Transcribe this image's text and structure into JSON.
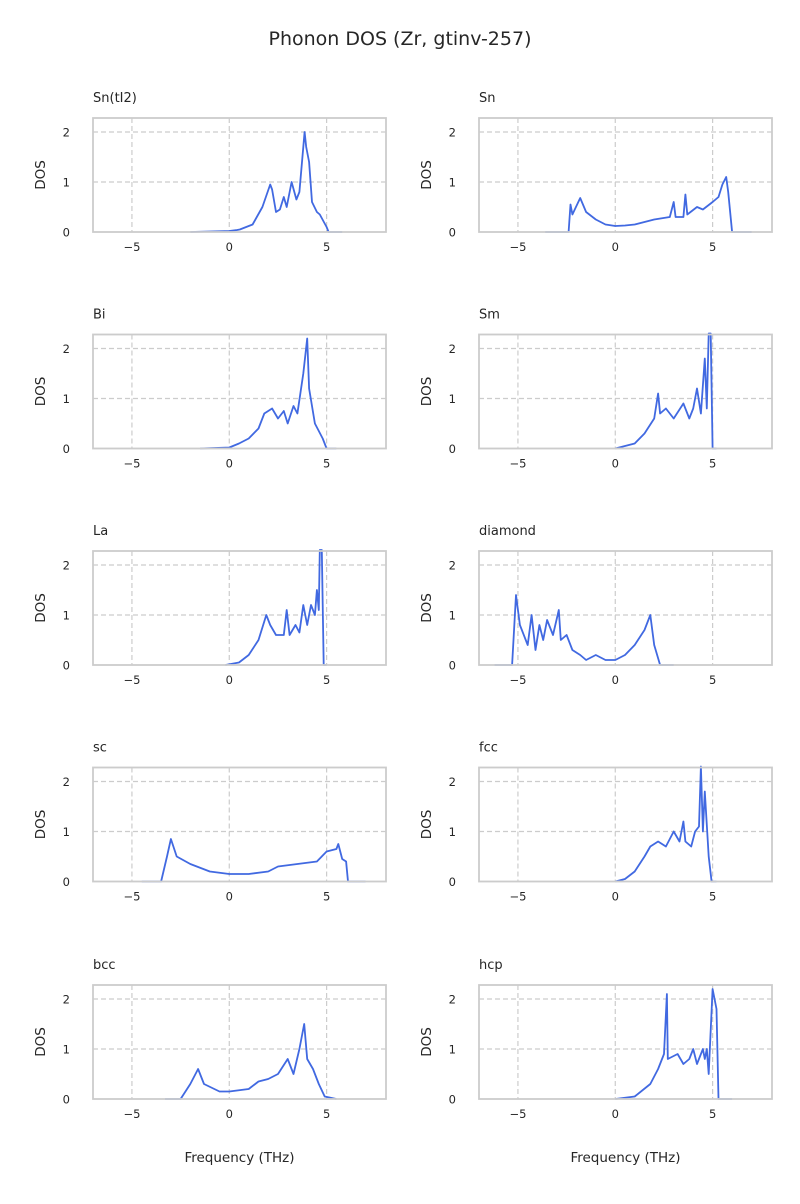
{
  "chart_data": {
    "type": "line",
    "title": "Phonon DOS (Zr, gtinv-257)",
    "xlabel": "Frequency (THz)",
    "ylabel": "DOS",
    "xlim": [
      -7,
      8.05
    ],
    "ylim": [
      0,
      2.28
    ],
    "xticks": [
      -5,
      0,
      5
    ],
    "yticks": [
      0,
      1,
      2
    ],
    "grid": true,
    "line_color": "#4169e1",
    "panels": [
      {
        "title": "Sn(tI2)",
        "x": [
          -2,
          0,
          0.4,
          0.54,
          1.2,
          1.7,
          2.1,
          2.2,
          2.4,
          2.6,
          2.8,
          2.95,
          3.2,
          3.45,
          3.6,
          3.87,
          3.95,
          4.1,
          4.25,
          4.5,
          4.65,
          5.0,
          5.1,
          5.8
        ],
        "y": [
          0,
          0.02,
          0.04,
          0.05,
          0.15,
          0.5,
          0.95,
          0.85,
          0.4,
          0.45,
          0.7,
          0.5,
          1.0,
          0.65,
          0.8,
          2.0,
          1.7,
          1.4,
          0.6,
          0.4,
          0.35,
          0.1,
          0,
          0
        ]
      },
      {
        "title": "Sn",
        "x": [
          -3.6,
          -2.4,
          -2.3,
          -2.2,
          -1.8,
          -1.5,
          -1,
          -0.5,
          0,
          0.5,
          1,
          2,
          2.8,
          3,
          3.1,
          3.5,
          3.6,
          3.7,
          4.2,
          4.5,
          5,
          5.3,
          5.5,
          5.7,
          5.8,
          6,
          7
        ],
        "y": [
          0,
          0,
          0.55,
          0.35,
          0.68,
          0.4,
          0.25,
          0.15,
          0.12,
          0.13,
          0.15,
          0.25,
          0.3,
          0.6,
          0.3,
          0.3,
          0.75,
          0.35,
          0.5,
          0.45,
          0.6,
          0.7,
          0.95,
          1.1,
          0.8,
          0,
          0
        ]
      },
      {
        "title": "Bi",
        "x": [
          -1.5,
          0,
          0.5,
          1,
          1.5,
          1.8,
          2.2,
          2.5,
          2.8,
          3,
          3.3,
          3.5,
          3.8,
          4,
          4.1,
          4.4,
          4.8,
          5,
          5.5
        ],
        "y": [
          0,
          0.02,
          0.1,
          0.2,
          0.4,
          0.7,
          0.8,
          0.6,
          0.75,
          0.5,
          0.85,
          0.7,
          1.5,
          2.2,
          1.2,
          0.5,
          0.2,
          0,
          0
        ]
      },
      {
        "title": "Sm",
        "x": [
          0,
          1,
          1.5,
          2,
          2.2,
          2.3,
          2.6,
          3,
          3.5,
          3.8,
          4,
          4.2,
          4.4,
          4.6,
          4.7,
          4.8,
          4.9,
          5.0,
          5.2
        ],
        "y": [
          0,
          0.1,
          0.3,
          0.6,
          1.1,
          0.7,
          0.8,
          0.6,
          0.9,
          0.6,
          0.8,
          1.2,
          0.7,
          1.8,
          0.8,
          2.3,
          2.3,
          0,
          0
        ]
      },
      {
        "title": "La",
        "x": [
          -0.2,
          0.5,
          1,
          1.5,
          1.9,
          2.1,
          2.4,
          2.8,
          2.95,
          3.1,
          3.4,
          3.6,
          3.8,
          4,
          4.2,
          4.4,
          4.5,
          4.6,
          4.65,
          4.75,
          4.85,
          5
        ],
        "y": [
          0,
          0.05,
          0.2,
          0.5,
          1.0,
          0.8,
          0.6,
          0.6,
          1.1,
          0.6,
          0.8,
          0.65,
          1.2,
          0.8,
          1.2,
          1.0,
          1.5,
          1.1,
          2.3,
          2.3,
          0,
          0
        ]
      },
      {
        "title": "diamond",
        "x": [
          -6.2,
          -5.3,
          -5.1,
          -4.9,
          -4.5,
          -4.3,
          -4.1,
          -3.9,
          -3.7,
          -3.5,
          -3.2,
          -2.9,
          -2.8,
          -2.5,
          -2.2,
          -1.8,
          -1.5,
          -1,
          -0.5,
          0,
          0.5,
          1,
          1.5,
          1.8,
          2,
          2.3,
          3
        ],
        "y": [
          0,
          0,
          1.4,
          0.8,
          0.4,
          1.0,
          0.3,
          0.8,
          0.5,
          0.9,
          0.6,
          1.1,
          0.5,
          0.6,
          0.3,
          0.2,
          0.1,
          0.2,
          0.1,
          0.1,
          0.2,
          0.4,
          0.7,
          1.0,
          0.4,
          0,
          0
        ]
      },
      {
        "title": "sc",
        "x": [
          -4.5,
          -3.5,
          -3.2,
          -3,
          -2.7,
          -2,
          -1,
          0,
          1,
          2,
          2.5,
          3.5,
          4.5,
          5,
          5.5,
          5.6,
          5.8,
          6,
          6.1,
          7
        ],
        "y": [
          0,
          0,
          0.5,
          0.85,
          0.5,
          0.35,
          0.2,
          0.15,
          0.15,
          0.2,
          0.3,
          0.35,
          0.4,
          0.6,
          0.65,
          0.75,
          0.45,
          0.4,
          0,
          0
        ]
      },
      {
        "title": "fcc",
        "x": [
          0,
          0.5,
          1,
          1.5,
          1.8,
          2.2,
          2.6,
          3,
          3.3,
          3.5,
          3.6,
          3.9,
          4.1,
          4.3,
          4.4,
          4.5,
          4.6,
          4.8,
          4.95,
          5.2
        ],
        "y": [
          0,
          0.05,
          0.2,
          0.5,
          0.7,
          0.8,
          0.7,
          1.0,
          0.8,
          1.2,
          0.8,
          0.7,
          1.0,
          1.1,
          2.3,
          1.0,
          1.8,
          0.5,
          0,
          0
        ]
      },
      {
        "title": "bcc",
        "x": [
          -3.3,
          -2.5,
          -2,
          -1.6,
          -1.3,
          -0.5,
          0,
          1,
          1.5,
          2,
          2.5,
          3,
          3.3,
          3.6,
          3.85,
          4,
          4.3,
          4.6,
          4.9,
          5.5
        ],
        "y": [
          0,
          0,
          0.3,
          0.6,
          0.3,
          0.15,
          0.15,
          0.2,
          0.35,
          0.4,
          0.5,
          0.8,
          0.5,
          1.0,
          1.5,
          0.8,
          0.6,
          0.3,
          0.05,
          0
        ]
      },
      {
        "title": "hcp",
        "x": [
          0,
          1,
          1.8,
          2.2,
          2.5,
          2.65,
          2.7,
          3.2,
          3.5,
          3.8,
          4,
          4.2,
          4.5,
          4.6,
          4.7,
          4.8,
          5.0,
          5.2,
          5.3,
          6
        ],
        "y": [
          0,
          0.05,
          0.3,
          0.6,
          0.9,
          2.1,
          0.8,
          0.9,
          0.7,
          0.8,
          1.0,
          0.7,
          1.0,
          0.8,
          1.0,
          0.5,
          2.2,
          1.8,
          0,
          0
        ]
      }
    ]
  }
}
